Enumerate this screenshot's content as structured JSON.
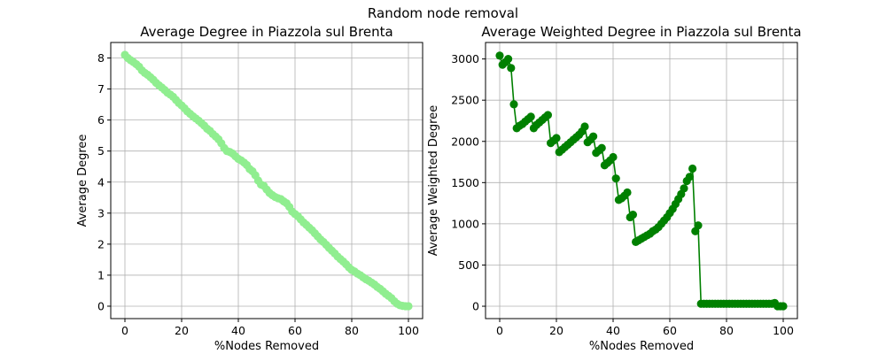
{
  "figure": {
    "suptitle": "Random node removal"
  },
  "chart_data": [
    {
      "type": "line",
      "title": "Average Degree in Piazzola sul Brenta",
      "xlabel": "%Nodes Removed",
      "ylabel": "Average Degree",
      "xlim": [
        -5,
        105
      ],
      "ylim": [
        -0.4,
        8.5
      ],
      "xticks": [
        0,
        20,
        40,
        60,
        80,
        100
      ],
      "yticks": [
        0,
        1,
        2,
        3,
        4,
        5,
        6,
        7,
        8
      ],
      "grid": true,
      "marker": "circle",
      "series": [
        {
          "color": "#90ee90",
          "x": [
            0,
            1,
            2,
            3,
            4,
            5,
            6,
            7,
            8,
            9,
            10,
            11,
            12,
            13,
            14,
            15,
            16,
            17,
            18,
            19,
            20,
            21,
            22,
            23,
            24,
            25,
            26,
            27,
            28,
            29,
            30,
            31,
            32,
            33,
            34,
            35,
            36,
            37,
            38,
            39,
            40,
            41,
            42,
            43,
            44,
            45,
            46,
            47,
            48,
            49,
            50,
            51,
            52,
            53,
            54,
            55,
            56,
            57,
            58,
            59,
            60,
            61,
            62,
            63,
            64,
            65,
            66,
            67,
            68,
            69,
            70,
            71,
            72,
            73,
            74,
            75,
            76,
            77,
            78,
            79,
            80,
            81,
            82,
            83,
            84,
            85,
            86,
            87,
            88,
            89,
            90,
            91,
            92,
            93,
            94,
            95,
            96,
            97,
            98,
            99,
            100
          ],
          "y": [
            8.1,
            8.0,
            7.93,
            7.87,
            7.8,
            7.72,
            7.6,
            7.52,
            7.46,
            7.38,
            7.3,
            7.2,
            7.12,
            7.05,
            6.97,
            6.88,
            6.82,
            6.75,
            6.65,
            6.55,
            6.47,
            6.38,
            6.28,
            6.2,
            6.12,
            6.05,
            5.98,
            5.9,
            5.82,
            5.72,
            5.65,
            5.55,
            5.47,
            5.38,
            5.25,
            5.1,
            5.0,
            4.97,
            4.92,
            4.83,
            4.75,
            4.7,
            4.63,
            4.55,
            4.42,
            4.35,
            4.22,
            4.05,
            3.92,
            3.88,
            3.76,
            3.65,
            3.58,
            3.52,
            3.48,
            3.45,
            3.38,
            3.32,
            3.2,
            3.05,
            2.97,
            2.9,
            2.8,
            2.7,
            2.62,
            2.53,
            2.45,
            2.35,
            2.25,
            2.15,
            2.07,
            1.98,
            1.88,
            1.79,
            1.7,
            1.6,
            1.52,
            1.44,
            1.35,
            1.25,
            1.17,
            1.12,
            1.05,
            1.0,
            0.93,
            0.87,
            0.82,
            0.76,
            0.7,
            0.62,
            0.56,
            0.48,
            0.4,
            0.33,
            0.26,
            0.16,
            0.08,
            0.03,
            0.01,
            0.0,
            0.0
          ]
        }
      ]
    },
    {
      "type": "line",
      "title": "Average Weighted Degree in Piazzola sul Brenta",
      "xlabel": "%Nodes Removed",
      "ylabel": "Average Weighted Degree",
      "xlim": [
        -5,
        105
      ],
      "ylim": [
        -150,
        3200
      ],
      "xticks": [
        0,
        20,
        40,
        60,
        80,
        100
      ],
      "yticks": [
        0,
        500,
        1000,
        1500,
        2000,
        2500,
        3000
      ],
      "grid": true,
      "marker": "circle",
      "series": [
        {
          "color": "#008000",
          "x": [
            0,
            1,
            2,
            3,
            4,
            5,
            6,
            7,
            8,
            9,
            10,
            11,
            12,
            13,
            14,
            15,
            16,
            17,
            18,
            19,
            20,
            21,
            22,
            23,
            24,
            25,
            26,
            27,
            28,
            29,
            30,
            31,
            32,
            33,
            34,
            35,
            36,
            37,
            38,
            39,
            40,
            41,
            42,
            43,
            44,
            45,
            46,
            47,
            48,
            49,
            50,
            51,
            52,
            53,
            54,
            55,
            56,
            57,
            58,
            59,
            60,
            61,
            62,
            63,
            64,
            65,
            66,
            67,
            68,
            69,
            70,
            71,
            72,
            73,
            74,
            75,
            76,
            77,
            78,
            79,
            80,
            81,
            82,
            83,
            84,
            85,
            86,
            87,
            88,
            89,
            90,
            91,
            92,
            93,
            94,
            95,
            96,
            97,
            98,
            99,
            100
          ],
          "y": [
            3040,
            2930,
            2960,
            3000,
            2890,
            2450,
            2160,
            2190,
            2210,
            2240,
            2270,
            2300,
            2160,
            2200,
            2230,
            2260,
            2290,
            2320,
            1980,
            2010,
            2040,
            1870,
            1900,
            1930,
            1960,
            1990,
            2020,
            2050,
            2080,
            2120,
            2180,
            1990,
            2020,
            2060,
            1860,
            1890,
            1920,
            1710,
            1740,
            1770,
            1810,
            1550,
            1290,
            1310,
            1340,
            1380,
            1080,
            1110,
            780,
            800,
            820,
            840,
            860,
            880,
            910,
            930,
            960,
            1000,
            1040,
            1080,
            1130,
            1180,
            1240,
            1300,
            1360,
            1430,
            1520,
            1570,
            1670,
            910,
            980,
            30,
            30,
            30,
            30,
            30,
            30,
            30,
            30,
            30,
            30,
            30,
            30,
            30,
            30,
            30,
            30,
            30,
            30,
            30,
            30,
            30,
            30,
            30,
            30,
            30,
            30,
            40,
            0,
            0,
            0
          ],
          "note_x_scale": "percent"
        }
      ]
    }
  ]
}
